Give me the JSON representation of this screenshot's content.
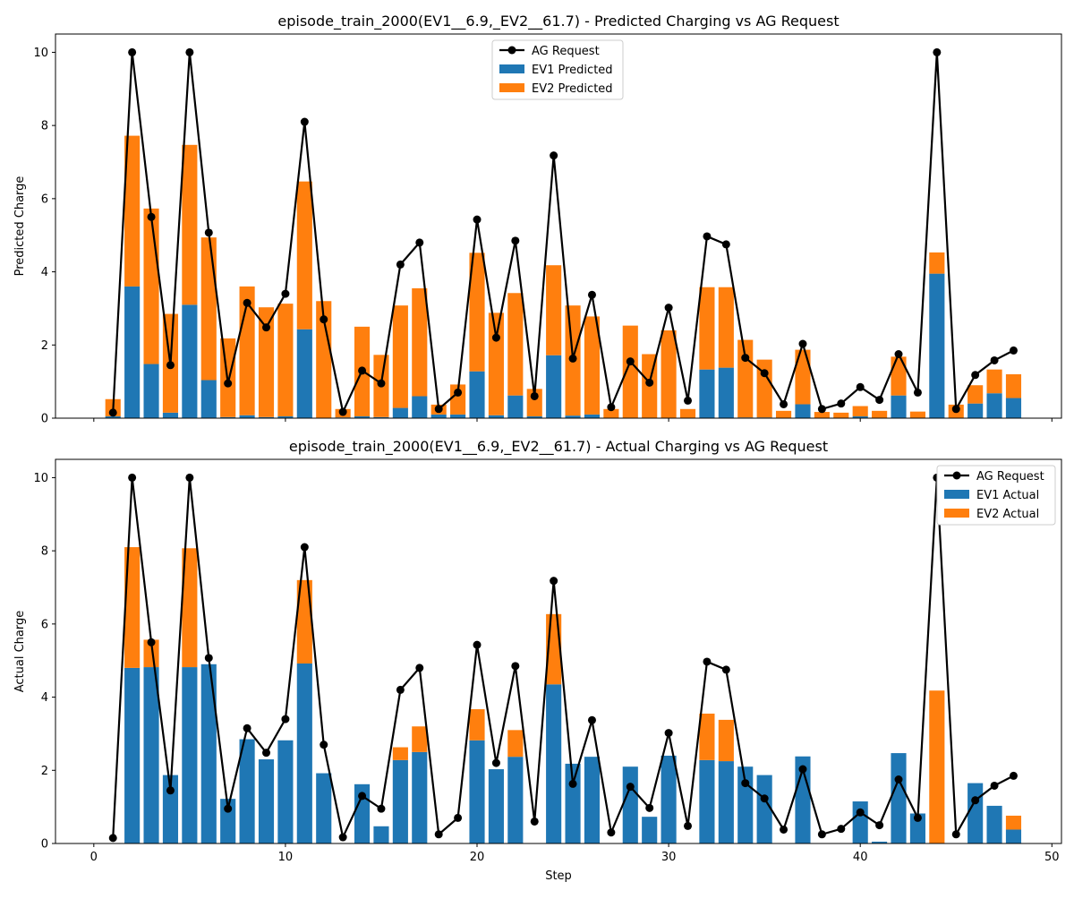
{
  "chart_data": [
    {
      "type": "bar",
      "stacked": true,
      "title": "episode_train_2000(EV1__6.9,_EV2__61.7) - Predicted Charging vs AG Request",
      "xlabel": "",
      "ylabel": "Predicted Charge",
      "xlim": [
        -2,
        50.5
      ],
      "ylim": [
        0,
        10.5
      ],
      "xticks": [
        0,
        10,
        20,
        30,
        40,
        50
      ],
      "yticks": [
        0,
        2,
        4,
        6,
        8,
        10
      ],
      "show_xtick_labels": false,
      "legend_position": "top-center",
      "x": [
        1,
        2,
        3,
        4,
        5,
        6,
        7,
        8,
        9,
        10,
        11,
        12,
        13,
        14,
        15,
        16,
        17,
        18,
        19,
        20,
        21,
        22,
        23,
        24,
        25,
        26,
        27,
        28,
        29,
        30,
        31,
        32,
        33,
        34,
        35,
        36,
        37,
        38,
        39,
        40,
        41,
        42,
        43,
        44,
        45,
        46,
        47,
        48
      ],
      "series": [
        {
          "name": "AG Request",
          "kind": "line",
          "color": "#000000",
          "values": [
            0.15,
            10.0,
            5.5,
            1.45,
            10.0,
            5.07,
            0.95,
            3.15,
            2.48,
            3.4,
            8.1,
            2.7,
            0.17,
            1.3,
            0.95,
            4.2,
            4.8,
            0.25,
            0.7,
            5.43,
            2.2,
            4.85,
            0.6,
            7.18,
            1.63,
            3.37,
            0.3,
            1.55,
            0.97,
            3.02,
            0.48,
            4.97,
            4.75,
            1.65,
            1.23,
            0.38,
            2.03,
            0.25,
            0.4,
            0.85,
            0.5,
            1.75,
            0.7,
            10.0,
            0.25,
            1.18,
            1.58,
            1.85
          ]
        },
        {
          "name": "EV1 Predicted",
          "kind": "bar",
          "color": "#1f77b4",
          "values": [
            0.05,
            3.6,
            1.48,
            0.15,
            3.1,
            1.04,
            0.03,
            0.08,
            0.03,
            0.05,
            2.43,
            0.0,
            0.02,
            0.05,
            0.03,
            0.28,
            0.6,
            0.1,
            0.1,
            1.28,
            0.08,
            0.62,
            0.05,
            1.72,
            0.07,
            0.1,
            0.0,
            0.0,
            0.0,
            0.0,
            0.0,
            1.33,
            1.38,
            0.02,
            0.02,
            0.0,
            0.38,
            0.0,
            0.0,
            0.05,
            0.0,
            0.62,
            0.0,
            3.95,
            0.0,
            0.4,
            0.68,
            0.55
          ]
        },
        {
          "name": "EV2 Predicted",
          "kind": "bar",
          "color": "#ff7f0e",
          "values": [
            0.47,
            4.12,
            4.25,
            2.7,
            4.37,
            3.9,
            2.15,
            3.52,
            3.0,
            3.08,
            4.04,
            3.2,
            0.23,
            2.45,
            1.7,
            2.8,
            2.95,
            0.27,
            0.82,
            3.24,
            2.8,
            2.8,
            0.75,
            2.46,
            3.01,
            2.68,
            0.25,
            2.53,
            1.75,
            2.4,
            0.25,
            2.25,
            2.2,
            2.12,
            1.58,
            0.2,
            1.49,
            0.17,
            0.15,
            0.28,
            0.2,
            1.06,
            0.18,
            0.58,
            0.37,
            0.5,
            0.65,
            0.65
          ]
        }
      ]
    },
    {
      "type": "bar",
      "stacked": true,
      "title": "episode_train_2000(EV1__6.9,_EV2__61.7) - Actual Charging vs AG Request",
      "xlabel": "Step",
      "ylabel": "Actual Charge",
      "xlim": [
        -2,
        50.5
      ],
      "ylim": [
        0,
        10.5
      ],
      "xticks": [
        0,
        10,
        20,
        30,
        40,
        50
      ],
      "yticks": [
        0,
        2,
        4,
        6,
        8,
        10
      ],
      "show_xtick_labels": true,
      "legend_position": "top-right",
      "x": [
        1,
        2,
        3,
        4,
        5,
        6,
        7,
        8,
        9,
        10,
        11,
        12,
        13,
        14,
        15,
        16,
        17,
        18,
        19,
        20,
        21,
        22,
        23,
        24,
        25,
        26,
        27,
        28,
        29,
        30,
        31,
        32,
        33,
        34,
        35,
        36,
        37,
        38,
        39,
        40,
        41,
        42,
        43,
        44,
        45,
        46,
        47,
        48
      ],
      "series": [
        {
          "name": "AG Request",
          "kind": "line",
          "color": "#000000",
          "values": [
            0.15,
            10.0,
            5.5,
            1.45,
            10.0,
            5.07,
            0.95,
            3.15,
            2.48,
            3.4,
            8.1,
            2.7,
            0.17,
            1.3,
            0.95,
            4.2,
            4.8,
            0.25,
            0.7,
            5.43,
            2.2,
            4.85,
            0.6,
            7.18,
            1.63,
            3.37,
            0.3,
            1.55,
            0.97,
            3.02,
            0.48,
            4.97,
            4.75,
            1.65,
            1.23,
            0.38,
            2.03,
            0.25,
            0.4,
            0.85,
            0.5,
            1.75,
            0.7,
            10.0,
            0.25,
            1.18,
            1.58,
            1.85
          ]
        },
        {
          "name": "EV1 Actual",
          "kind": "bar",
          "color": "#1f77b4",
          "values": [
            0.0,
            4.8,
            4.82,
            1.87,
            4.82,
            4.9,
            1.22,
            2.85,
            2.3,
            2.82,
            4.92,
            1.92,
            0.0,
            1.62,
            0.47,
            2.28,
            2.5,
            0.0,
            0.0,
            2.82,
            2.03,
            2.37,
            0.0,
            4.35,
            2.18,
            2.37,
            0.0,
            2.1,
            0.73,
            2.4,
            0.0,
            2.28,
            2.25,
            2.1,
            1.87,
            0.0,
            2.38,
            0.0,
            0.0,
            1.15,
            0.05,
            2.47,
            0.82,
            0.0,
            0.0,
            1.65,
            1.03,
            0.38
          ]
        },
        {
          "name": "EV2 Actual",
          "kind": "bar",
          "color": "#ff7f0e",
          "values": [
            0.0,
            3.3,
            0.75,
            0.0,
            3.25,
            0.0,
            0.0,
            0.0,
            0.0,
            0.0,
            2.28,
            0.0,
            0.0,
            0.0,
            0.0,
            0.35,
            0.7,
            0.0,
            0.0,
            0.85,
            0.0,
            0.73,
            0.0,
            1.92,
            0.0,
            0.0,
            0.0,
            0.0,
            0.0,
            0.0,
            0.0,
            1.27,
            1.13,
            0.0,
            0.0,
            0.0,
            0.0,
            0.0,
            0.0,
            0.0,
            0.0,
            0.0,
            0.0,
            4.18,
            0.0,
            0.0,
            0.0,
            0.38
          ]
        }
      ]
    }
  ]
}
